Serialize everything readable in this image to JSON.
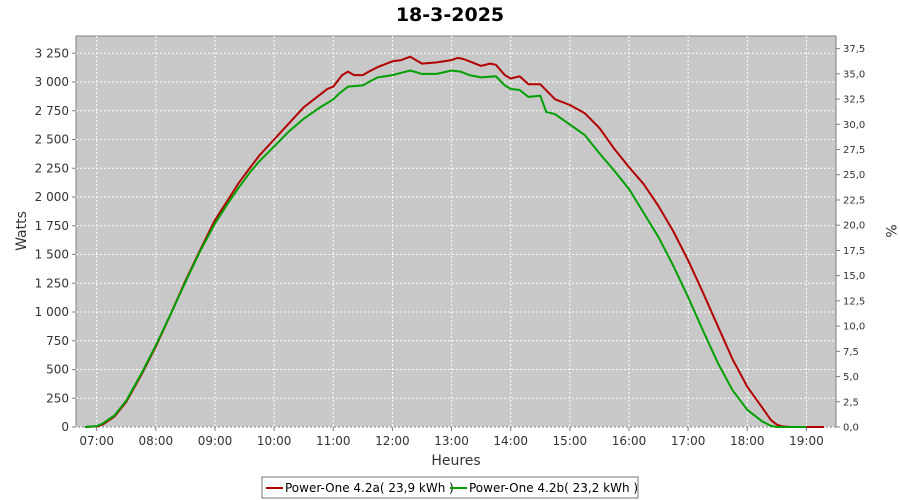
{
  "chart_data": {
    "type": "line",
    "title": "18-3-2025",
    "xlabel": "Heures",
    "ylabel": "Watts",
    "y2label": "%",
    "xlim": [
      6.65,
      19.5
    ],
    "ylim": [
      0,
      3400
    ],
    "y2lim": [
      0,
      38.75
    ],
    "x_ticks": [
      7,
      8,
      9,
      10,
      11,
      12,
      13,
      14,
      15,
      16,
      17,
      18,
      19
    ],
    "x_tick_labels": [
      "07:00",
      "08:00",
      "09:00",
      "10:00",
      "11:00",
      "12:00",
      "13:00",
      "14:00",
      "15:00",
      "16:00",
      "17:00",
      "18:00",
      "19:00"
    ],
    "y_ticks": [
      0,
      250,
      500,
      750,
      1000,
      1250,
      1500,
      1750,
      2000,
      2250,
      2500,
      2750,
      3000,
      3250
    ],
    "y_tick_labels": [
      "0",
      "250",
      "500",
      "750",
      "1 000",
      "1 250",
      "1 500",
      "1 750",
      "2 000",
      "2 250",
      "2 500",
      "2 750",
      "3 000",
      "3 250"
    ],
    "y2_ticks": [
      0,
      2.5,
      5,
      7.5,
      10,
      12.5,
      15,
      17.5,
      20,
      22.5,
      25,
      27.5,
      30,
      32.5,
      35,
      37.5
    ],
    "y2_tick_labels": [
      "0,0",
      "2,5",
      "5,0",
      "7,5",
      "10,0",
      "12,5",
      "15,0",
      "17,5",
      "20,0",
      "22,5",
      "25,0",
      "27,5",
      "30,0",
      "32,5",
      "35,0",
      "37,5"
    ],
    "grid": true,
    "legend_position": "bottom",
    "background": "#c8c8c8",
    "series": [
      {
        "name": "Power-One 4.2a( 23,9 kWh )",
        "color": "#b30000",
        "x": [
          6.8,
          7.0,
          7.1,
          7.3,
          7.5,
          7.75,
          8.0,
          8.25,
          8.5,
          8.75,
          9.0,
          9.25,
          9.4,
          9.6,
          9.75,
          10.0,
          10.25,
          10.5,
          10.75,
          10.9,
          11.0,
          11.15,
          11.25,
          11.35,
          11.5,
          11.6,
          11.75,
          12.0,
          12.15,
          12.3,
          12.5,
          12.75,
          13.0,
          13.1,
          13.2,
          13.35,
          13.5,
          13.65,
          13.75,
          13.9,
          14.0,
          14.15,
          14.3,
          14.5,
          14.75,
          15.0,
          15.25,
          15.5,
          15.75,
          16.0,
          16.25,
          16.5,
          16.75,
          17.0,
          17.25,
          17.5,
          17.75,
          18.0,
          18.25,
          18.4,
          18.5,
          18.6,
          18.75,
          19.0,
          19.3
        ],
        "y": [
          0,
          5,
          20,
          90,
          220,
          450,
          700,
          980,
          1270,
          1540,
          1800,
          2000,
          2120,
          2260,
          2360,
          2500,
          2640,
          2780,
          2880,
          2940,
          2960,
          3060,
          3090,
          3060,
          3060,
          3090,
          3130,
          3180,
          3190,
          3220,
          3160,
          3170,
          3190,
          3210,
          3200,
          3170,
          3140,
          3160,
          3150,
          3060,
          3030,
          3050,
          2980,
          2980,
          2850,
          2800,
          2730,
          2600,
          2420,
          2260,
          2110,
          1920,
          1700,
          1450,
          1170,
          880,
          590,
          350,
          170,
          60,
          20,
          5,
          0,
          0,
          0
        ]
      },
      {
        "name": "Power-One 4.2b( 23,2 kWh )",
        "color": "#00a000",
        "x": [
          6.8,
          7.0,
          7.1,
          7.3,
          7.5,
          7.75,
          8.0,
          8.25,
          8.5,
          8.75,
          9.0,
          9.25,
          9.4,
          9.6,
          9.75,
          10.0,
          10.25,
          10.5,
          10.75,
          11.0,
          11.1,
          11.25,
          11.5,
          11.6,
          11.75,
          12.0,
          12.15,
          12.3,
          12.5,
          12.75,
          13.0,
          13.15,
          13.3,
          13.5,
          13.75,
          13.9,
          14.0,
          14.15,
          14.3,
          14.5,
          14.6,
          14.75,
          15.0,
          15.25,
          15.5,
          15.75,
          16.0,
          16.25,
          16.5,
          16.75,
          17.0,
          17.25,
          17.5,
          17.75,
          18.0,
          18.25,
          18.4,
          18.5,
          18.6,
          18.75,
          19.0
        ],
        "y": [
          0,
          8,
          30,
          100,
          230,
          460,
          710,
          980,
          1260,
          1530,
          1770,
          1970,
          2080,
          2220,
          2310,
          2440,
          2570,
          2680,
          2770,
          2850,
          2900,
          2960,
          2970,
          3000,
          3040,
          3060,
          3080,
          3100,
          3070,
          3070,
          3100,
          3090,
          3060,
          3040,
          3050,
          2970,
          2940,
          2930,
          2870,
          2880,
          2740,
          2720,
          2630,
          2540,
          2380,
          2230,
          2070,
          1860,
          1650,
          1400,
          1130,
          840,
          560,
          320,
          150,
          50,
          10,
          0,
          0,
          0,
          0
        ]
      }
    ]
  }
}
